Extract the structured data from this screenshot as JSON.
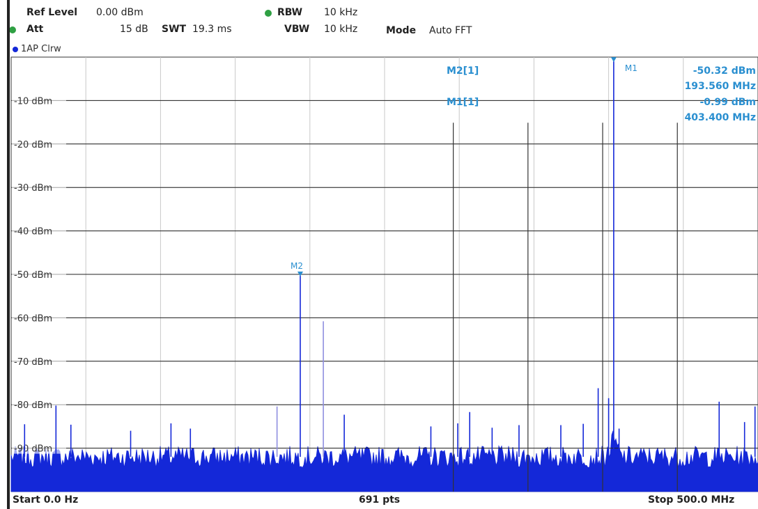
{
  "header": {
    "ref_level_label": "Ref Level",
    "ref_level_value": "0.00 dBm",
    "att_label": "Att",
    "att_value": "15 dB",
    "swt_label": "SWT",
    "swt_value": "19.3 ms",
    "rbw_label": "RBW",
    "rbw_value": "10 kHz",
    "vbw_label": "VBW",
    "vbw_value": "10 kHz",
    "mode_label": "Mode",
    "mode_value": "Auto FFT",
    "indicator_color": "#2fa043"
  },
  "trace": {
    "label": "1AP Clrw",
    "color": "#1428d8",
    "dot_color": "#1428d8"
  },
  "footer": {
    "start": "Start 0.0 Hz",
    "points": "691 pts",
    "stop": "Stop 500.0 MHz"
  },
  "markers": {
    "color": "#2a8fd0",
    "table": [
      {
        "name": "M2[1]",
        "level": "-50.32 dBm",
        "freq": "193.560 MHz"
      },
      {
        "name": "M1[1]",
        "level": "-0.99 dBm",
        "freq": "403.400 MHz"
      }
    ],
    "m1_label": "M1",
    "m2_label": "M2"
  },
  "chart_data": {
    "type": "line",
    "title": "",
    "xlabel": "",
    "ylabel": "",
    "xlim_mhz": [
      0,
      500
    ],
    "ylim_dbm": [
      -100,
      0
    ],
    "y_ticks": [
      "-10 dBm",
      "-20 dBm",
      "-30 dBm",
      "-40 dBm",
      "-50 dBm",
      "-60 dBm",
      "-70 dBm",
      "-80 dBm",
      "-90 dBm"
    ],
    "grid": true,
    "noise_floor_dbm": -92,
    "spurs": [
      {
        "f_mhz": 9,
        "level": -84.5
      },
      {
        "f_mhz": 30,
        "level": -80.2
      },
      {
        "f_mhz": 40,
        "level": -84.6
      },
      {
        "f_mhz": 80,
        "level": -86.0
      },
      {
        "f_mhz": 107,
        "level": -84.3
      },
      {
        "f_mhz": 120,
        "level": -85.5
      },
      {
        "f_mhz": 178,
        "level": -80.4
      },
      {
        "f_mhz": 193.56,
        "level": -50.32
      },
      {
        "f_mhz": 209,
        "level": -60.8
      },
      {
        "f_mhz": 223,
        "level": -82.3
      },
      {
        "f_mhz": 281,
        "level": -85.0
      },
      {
        "f_mhz": 299,
        "level": -84.3
      },
      {
        "f_mhz": 307,
        "level": -81.7
      },
      {
        "f_mhz": 322,
        "level": -85.3
      },
      {
        "f_mhz": 340,
        "level": -84.7
      },
      {
        "f_mhz": 368,
        "level": -84.7
      },
      {
        "f_mhz": 383,
        "level": -84.4
      },
      {
        "f_mhz": 393,
        "level": -76.2
      },
      {
        "f_mhz": 400,
        "level": -78.5
      },
      {
        "f_mhz": 403.4,
        "level": -0.99
      },
      {
        "f_mhz": 407,
        "level": -85.5
      },
      {
        "f_mhz": 474,
        "level": -79.3
      },
      {
        "f_mhz": 491,
        "level": -84.0
      },
      {
        "f_mhz": 498,
        "level": -80.4
      }
    ],
    "gray_lines": [
      {
        "f_mhz": 296,
        "level": -15.1
      },
      {
        "f_mhz": 346,
        "level": -15.1
      },
      {
        "f_mhz": 396,
        "level": -15.1
      },
      {
        "f_mhz": 446,
        "level": -15.1
      }
    ],
    "markers": [
      {
        "name": "M1",
        "f_mhz": 403.4,
        "level_dbm": -0.99
      },
      {
        "name": "M2",
        "f_mhz": 193.56,
        "level_dbm": -50.32
      }
    ]
  }
}
